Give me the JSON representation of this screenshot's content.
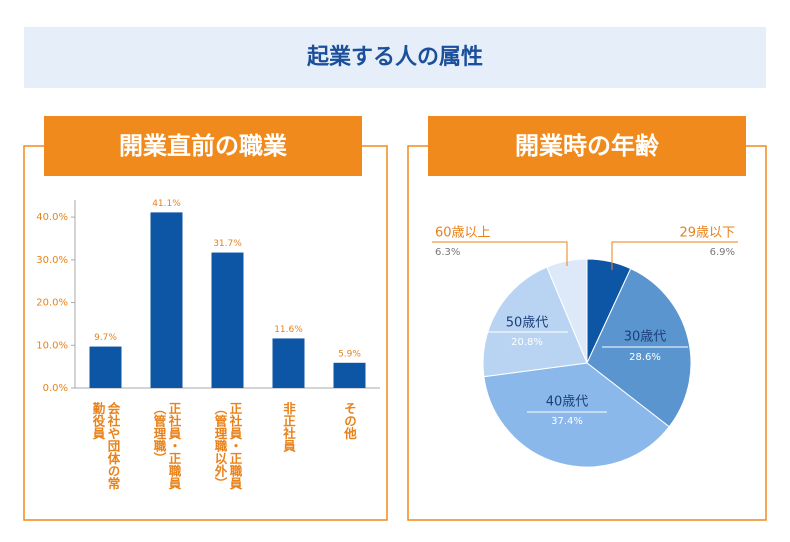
{
  "header": {
    "title": "起業する人の属性"
  },
  "chart_data": [
    {
      "type": "bar",
      "title": "開業直前の職業",
      "categories": [
        "会社や団体の常勤役員",
        "正社員・正職員（管理職）",
        "正社員・正職員（管理職以外）",
        "非正社員",
        "その他"
      ],
      "values": [
        9.7,
        41.1,
        31.7,
        11.6,
        5.9
      ],
      "value_labels": [
        "9.7%",
        "41.1%",
        "31.7%",
        "11.6%",
        "5.9%"
      ],
      "color": "#0d56a6",
      "ylim": [
        0,
        44
      ],
      "yticks": [
        {
          "value": 0,
          "label": "0.0%"
        },
        {
          "value": 10,
          "label": "10.0%"
        },
        {
          "value": 20,
          "label": "20.0%"
        },
        {
          "value": 30,
          "label": "30.0%"
        },
        {
          "value": 40,
          "label": "40.0%"
        }
      ]
    },
    {
      "type": "pie",
      "title": "開業時の年齢",
      "categories": [
        "29歳以下",
        "30歳代",
        "40歳代",
        "50歳代",
        "60歳以上"
      ],
      "values": [
        6.9,
        28.6,
        37.4,
        20.8,
        6.3
      ],
      "value_labels": [
        "6.9%",
        "28.6%",
        "37.4%",
        "20.8%",
        "6.3%"
      ],
      "colors": [
        "#0d56a6",
        "#5b95cf",
        "#8bb8ea",
        "#b9d4f3",
        "#dde9f8"
      ]
    }
  ]
}
